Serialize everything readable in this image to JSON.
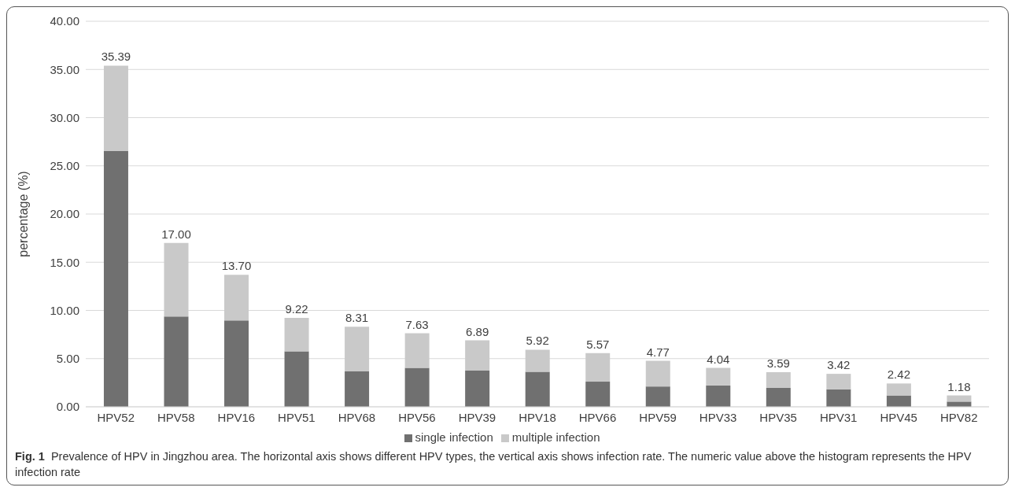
{
  "chart_data": {
    "type": "bar",
    "stacked": true,
    "ylabel": "percentage (%)",
    "categories": [
      "HPV52",
      "HPV58",
      "HPV16",
      "HPV51",
      "HPV68",
      "HPV56",
      "HPV39",
      "HPV18",
      "HPV66",
      "HPV59",
      "HPV33",
      "HPV35",
      "HPV31",
      "HPV45",
      "HPV82"
    ],
    "series": [
      {
        "name": "single infection",
        "color": "#707070",
        "values": [
          26.54,
          9.36,
          8.96,
          5.75,
          3.68,
          4.04,
          3.75,
          3.64,
          2.61,
          2.11,
          2.21,
          1.96,
          1.82,
          1.18,
          0.54
        ]
      },
      {
        "name": "multiple infection",
        "color": "#c9c9c9",
        "values": [
          8.85,
          7.64,
          4.74,
          3.47,
          4.63,
          3.59,
          3.14,
          2.28,
          2.96,
          2.66,
          1.83,
          1.63,
          1.6,
          1.24,
          0.64
        ]
      }
    ],
    "totals": [
      "35.39",
      "17.00",
      "13.70",
      "9.22",
      "8.31",
      "7.63",
      "6.89",
      "5.92",
      "5.57",
      "4.77",
      "4.04",
      "3.59",
      "3.42",
      "2.42",
      "1.18"
    ],
    "ylim": [
      0,
      40
    ],
    "yticks": [
      {
        "value": 0,
        "label": "0.00"
      },
      {
        "value": 5,
        "label": "5.00"
      },
      {
        "value": 10,
        "label": "10.00"
      },
      {
        "value": 15,
        "label": "15.00"
      },
      {
        "value": 20,
        "label": "20.00"
      },
      {
        "value": 25,
        "label": "25.00"
      },
      {
        "value": 30,
        "label": "30.00"
      },
      {
        "value": 35,
        "label": "35.00"
      },
      {
        "value": 40,
        "label": "40.00"
      }
    ],
    "grid": "y",
    "legend": "bottom",
    "annotations": [
      "Fig. 1",
      "Prevalence of HPV in Jingzhou area. The horizontal axis shows different HPV types, the vertical axis shows infection rate. The numeric value above the histogram represents the HPV infection rate"
    ]
  }
}
